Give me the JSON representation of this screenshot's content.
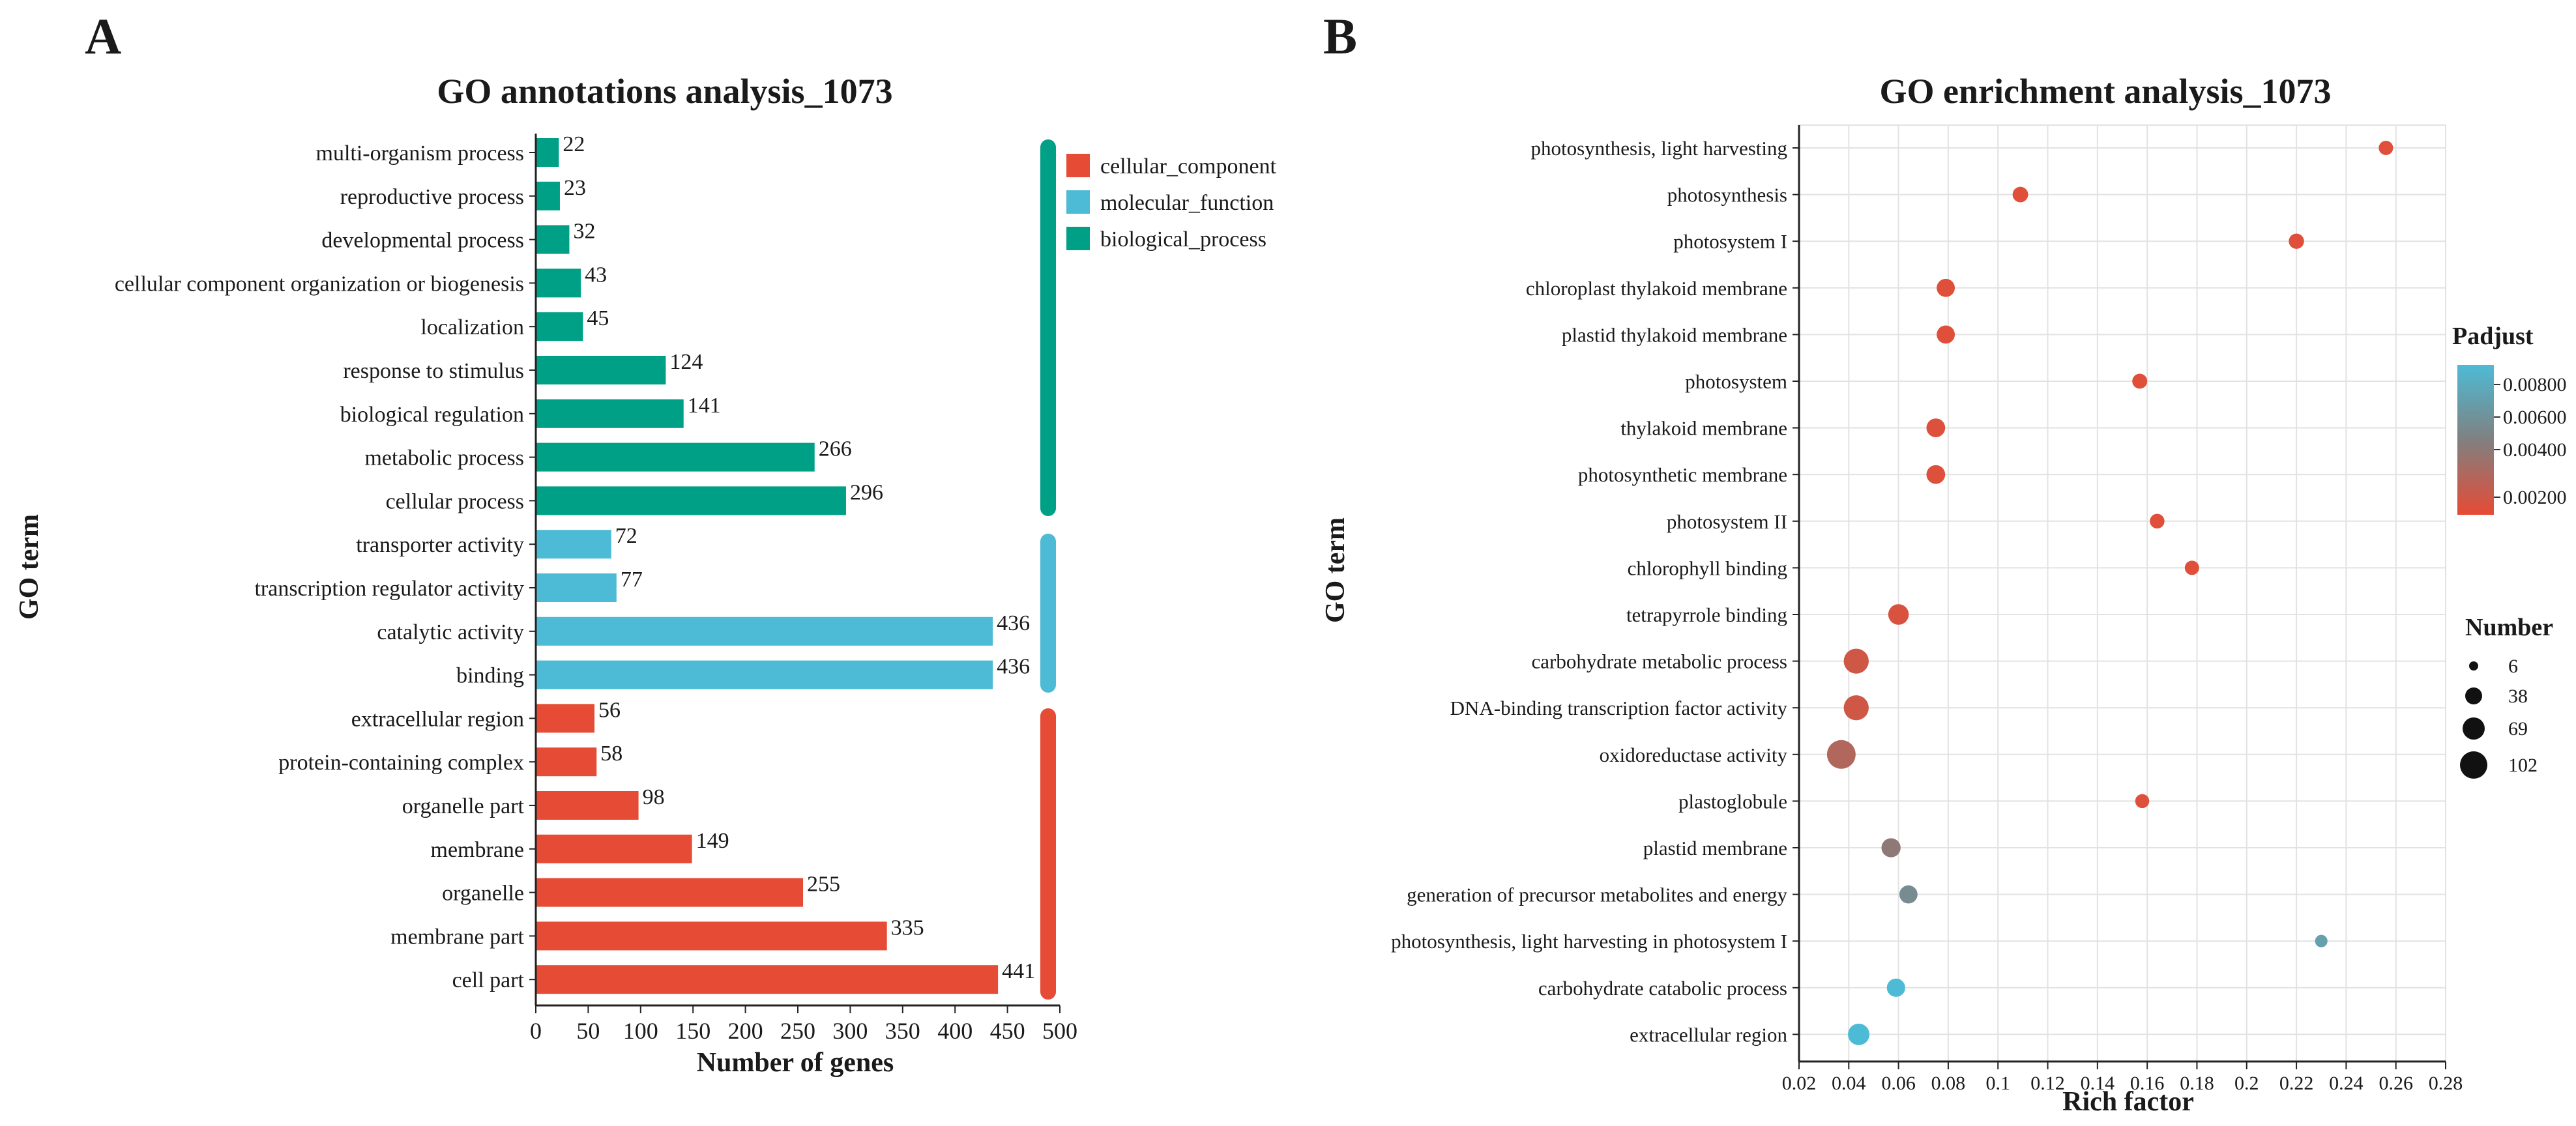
{
  "colors": {
    "cellular_component": "#E64B35",
    "molecular_function": "#4DBBD5",
    "biological_process": "#00A087",
    "padj_low": "#E64B35",
    "padj_mid": "#808080",
    "padj_high": "#4DBBD5"
  },
  "panel_a": {
    "letter": "A",
    "title": "GO annotations analysis_1073",
    "xlabel": "Number of genes",
    "ylabel": "GO term",
    "legend": [
      {
        "label": "cellular_component",
        "key": "cellular_component"
      },
      {
        "label": "molecular_function",
        "key": "molecular_function"
      },
      {
        "label": "biological_process",
        "key": "biological_process"
      }
    ],
    "x_ticks": [
      "0",
      "50",
      "100",
      "150",
      "200",
      "250",
      "300",
      "350",
      "400",
      "450",
      "500"
    ]
  },
  "panel_b": {
    "letter": "B",
    "title": "GO enrichment analysis_1073",
    "xlabel": "Rich factor",
    "ylabel": "GO term",
    "padj_title": "Padjust",
    "padj_ticks": [
      "0.00800",
      "0.00600",
      "0.00400",
      "0.00200"
    ],
    "number_title": "Number",
    "number_legend": [
      "6",
      "38",
      "69",
      "102"
    ],
    "x_ticks": [
      "0.02",
      "0.04",
      "0.06",
      "0.08",
      "0.1",
      "0.12",
      "0.14",
      "0.16",
      "0.18",
      "0.2",
      "0.22",
      "0.24",
      "0.26",
      "0.28"
    ]
  },
  "chart_data": [
    {
      "type": "bar",
      "orientation": "horizontal",
      "title": "GO annotations analysis_1073",
      "xlabel": "Number of genes",
      "ylabel": "GO term",
      "xlim": [
        0,
        500
      ],
      "categories": [
        "multi-organism process",
        "reproductive process",
        "developmental process",
        "cellular component organization or biogenesis",
        "localization",
        "response to stimulus",
        "biological regulation",
        "metabolic process",
        "cellular process",
        "transporter activity",
        "transcription regulator activity",
        "catalytic activity",
        "binding",
        "extracellular region",
        "protein-containing complex",
        "organelle part",
        "membrane",
        "organelle",
        "membrane part",
        "cell part"
      ],
      "values": [
        22,
        23,
        32,
        43,
        45,
        124,
        141,
        266,
        296,
        72,
        77,
        436,
        436,
        56,
        58,
        98,
        149,
        255,
        335,
        441
      ],
      "groups": [
        "biological_process",
        "biological_process",
        "biological_process",
        "biological_process",
        "biological_process",
        "biological_process",
        "biological_process",
        "biological_process",
        "biological_process",
        "molecular_function",
        "molecular_function",
        "molecular_function",
        "molecular_function",
        "cellular_component",
        "cellular_component",
        "cellular_component",
        "cellular_component",
        "cellular_component",
        "cellular_component",
        "cellular_component"
      ]
    },
    {
      "type": "scatter",
      "title": "GO enrichment analysis_1073",
      "xlabel": "Rich factor",
      "ylabel": "GO term",
      "xlim": [
        0.02,
        0.28
      ],
      "categories": [
        "photosynthesis, light harvesting",
        "photosynthesis",
        "photosystem I",
        "chloroplast thylakoid membrane",
        "plastid thylakoid membrane",
        "photosystem",
        "thylakoid membrane",
        "photosynthetic membrane",
        "photosystem II",
        "chlorophyll binding",
        "tetrapyrrole binding",
        "carbohydrate metabolic process",
        "DNA-binding transcription factor activity",
        "oxidoreductase activity",
        "plastoglobule",
        "plastid membrane",
        "generation of precursor metabolites and energy",
        "photosynthesis, light harvesting in photosystem I",
        "carbohydrate catabolic process",
        "extracellular region"
      ],
      "rich_factor": [
        0.256,
        0.109,
        0.22,
        0.079,
        0.079,
        0.157,
        0.075,
        0.075,
        0.164,
        0.178,
        0.06,
        0.043,
        0.043,
        0.037,
        0.158,
        0.057,
        0.064,
        0.23,
        0.059,
        0.044
      ],
      "number": [
        10,
        14,
        13,
        25,
        25,
        12,
        28,
        28,
        11,
        10,
        38,
        69,
        69,
        102,
        9,
        30,
        25,
        5,
        26,
        44
      ],
      "padjust": [
        0.0005,
        0.0005,
        0.0005,
        0.0005,
        0.0005,
        0.0005,
        0.0006,
        0.0006,
        0.0005,
        0.0005,
        0.0008,
        0.0012,
        0.0012,
        0.0025,
        0.0006,
        0.004,
        0.0055,
        0.007,
        0.009,
        0.009
      ],
      "padjust_range": [
        0.0002,
        0.009
      ]
    }
  ]
}
